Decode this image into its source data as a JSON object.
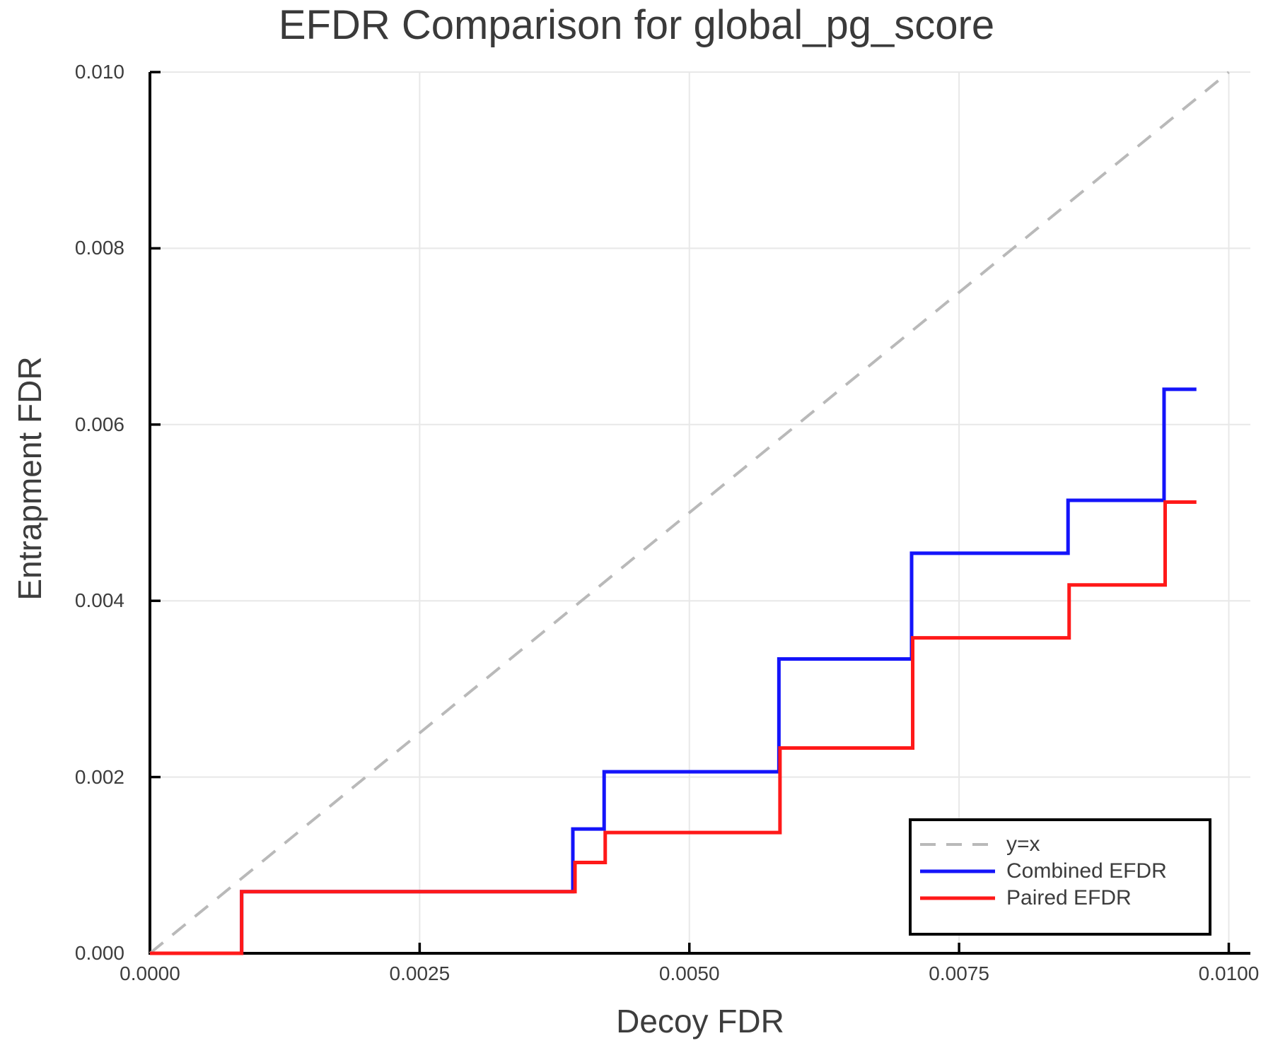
{
  "chart_data": {
    "type": "line",
    "title": "EFDR Comparison for global_pg_score",
    "xlabel": "Decoy FDR",
    "ylabel": "Entrapment FDR",
    "xlim": [
      0,
      0.0102
    ],
    "ylim": [
      0,
      0.01
    ],
    "x_ticks": [
      0.0,
      0.0025,
      0.005,
      0.0075,
      0.01
    ],
    "x_tick_labels": [
      "0.0000",
      "0.0025",
      "0.0050",
      "0.0075",
      "0.0100"
    ],
    "y_ticks": [
      0.0,
      0.002,
      0.004,
      0.006,
      0.008,
      0.01
    ],
    "y_tick_labels": [
      "0.000",
      "0.002",
      "0.004",
      "0.006",
      "0.008",
      "0.010"
    ],
    "grid": true,
    "grid_color": "#e8e8e8",
    "axis_color": "#000000",
    "text_color": "#3d3d3d",
    "legend_position": "bottom-right",
    "reference_line": {
      "label": "y=x",
      "from": [
        0,
        0
      ],
      "to": [
        0.01,
        0.01
      ],
      "color": "#b9b9b9",
      "dashed": true
    },
    "series": [
      {
        "name": "Combined EFDR",
        "color": "#1414fa",
        "step": "post",
        "x_end": 0.0097,
        "points": [
          [
            0.0,
            0.0
          ],
          [
            0.00085,
            0.0007
          ],
          [
            0.00392,
            0.00141
          ],
          [
            0.00421,
            0.00206
          ],
          [
            0.00583,
            0.00334
          ],
          [
            0.00706,
            0.00454
          ],
          [
            0.00851,
            0.00514
          ],
          [
            0.0094,
            0.0064
          ]
        ]
      },
      {
        "name": "Paired EFDR",
        "color": "#ff1919",
        "step": "post",
        "x_end": 0.0097,
        "points": [
          [
            0.0,
            0.0
          ],
          [
            0.00085,
            0.0007
          ],
          [
            0.00394,
            0.00103
          ],
          [
            0.00422,
            0.00137
          ],
          [
            0.00584,
            0.00233
          ],
          [
            0.00707,
            0.00358
          ],
          [
            0.00852,
            0.00418
          ],
          [
            0.00941,
            0.00512
          ]
        ]
      }
    ],
    "legend": {
      "items": [
        {
          "label": "y=x",
          "color": "#b9b9b9",
          "dashed": true
        },
        {
          "label": "Combined EFDR",
          "color": "#1414fa",
          "dashed": false
        },
        {
          "label": "Paired EFDR",
          "color": "#ff1919",
          "dashed": false
        }
      ]
    }
  }
}
